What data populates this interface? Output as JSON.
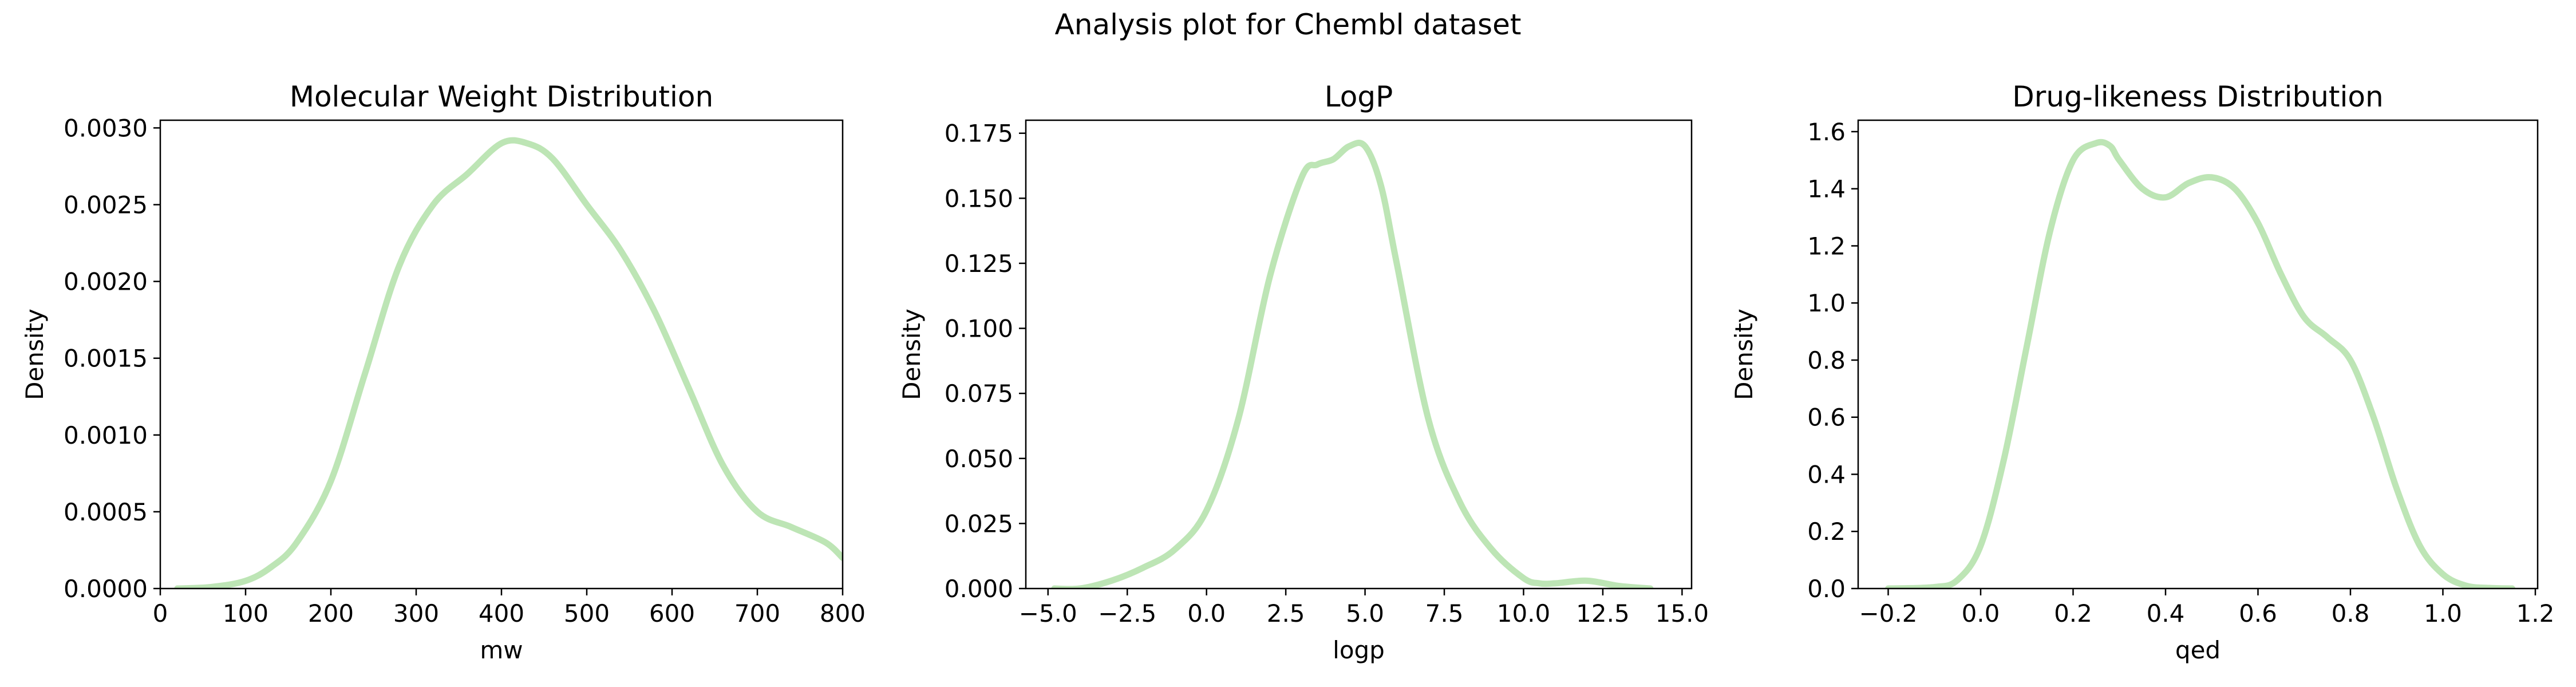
{
  "suptitle": "Analysis plot for Chembl dataset",
  "colors": {
    "curve": "#bde5b5"
  },
  "chart_data": [
    {
      "type": "line",
      "title": "Molecular Weight Distribution",
      "xlabel": "mw",
      "ylabel": "Density",
      "xlim": [
        0,
        800
      ],
      "ylim": [
        0,
        0.00305
      ],
      "xticks": [
        0,
        100,
        200,
        300,
        400,
        500,
        600,
        700,
        800
      ],
      "xtick_labels": [
        "0",
        "100",
        "200",
        "300",
        "400",
        "500",
        "600",
        "700",
        "800"
      ],
      "yticks": [
        0,
        0.0005,
        0.001,
        0.0015,
        0.002,
        0.0025,
        0.003
      ],
      "ytick_labels": [
        "0.0000",
        "0.0005",
        "0.0010",
        "0.0015",
        "0.0020",
        "0.0025",
        "0.0030"
      ],
      "grid": false,
      "series": [
        {
          "x": [
            20,
            60,
            100,
            130,
            160,
            200,
            240,
            280,
            320,
            360,
            400,
            430,
            460,
            500,
            540,
            580,
            620,
            660,
            700,
            740,
            780,
            800
          ],
          "y": [
            0.0,
            1e-05,
            5e-05,
            0.00014,
            0.0003,
            0.0007,
            0.0014,
            0.0021,
            0.0025,
            0.0027,
            0.0029,
            0.0029,
            0.0028,
            0.0025,
            0.0022,
            0.0018,
            0.0013,
            0.0008,
            0.0005,
            0.0004,
            0.0003,
            0.0002
          ]
        }
      ]
    },
    {
      "type": "line",
      "title": "LogP",
      "xlabel": "logp",
      "ylabel": "Density",
      "xlim": [
        -5.7,
        15.3
      ],
      "ylim": [
        0,
        0.18
      ],
      "xticks": [
        -5,
        -2.5,
        0,
        2.5,
        5,
        7.5,
        10,
        12.5,
        15
      ],
      "xtick_labels": [
        "−5.0",
        "−2.5",
        "0.0",
        "2.5",
        "5.0",
        "7.5",
        "10.0",
        "12.5",
        "15.0"
      ],
      "yticks": [
        0,
        0.025,
        0.05,
        0.075,
        0.1,
        0.125,
        0.15,
        0.175
      ],
      "ytick_labels": [
        "0.000",
        "0.025",
        "0.050",
        "0.075",
        "0.100",
        "0.125",
        "0.150",
        "0.175"
      ],
      "grid": false,
      "series": [
        {
          "x": [
            -4.8,
            -4,
            -3,
            -2,
            -1,
            0,
            1,
            2,
            3,
            3.5,
            4,
            4.5,
            5,
            5.5,
            6,
            7,
            8,
            9,
            10,
            10.5,
            11,
            12,
            13,
            14
          ],
          "y": [
            0.0,
            0.0,
            0.003,
            0.008,
            0.015,
            0.03,
            0.065,
            0.12,
            0.158,
            0.163,
            0.165,
            0.17,
            0.17,
            0.155,
            0.125,
            0.065,
            0.033,
            0.015,
            0.004,
            0.002,
            0.002,
            0.003,
            0.001,
            0.0
          ]
        }
      ]
    },
    {
      "type": "line",
      "title": "Drug-likeness Distribution",
      "xlabel": "qed",
      "ylabel": "Density",
      "xlim": [
        -0.265,
        1.205
      ],
      "ylim": [
        0,
        1.64
      ],
      "xticks": [
        -0.2,
        0.0,
        0.2,
        0.4,
        0.6,
        0.8,
        1.0,
        1.2
      ],
      "xtick_labels": [
        "−0.2",
        "0.0",
        "0.2",
        "0.4",
        "0.6",
        "0.8",
        "1.0",
        "1.2"
      ],
      "yticks": [
        0,
        0.2,
        0.4,
        0.6,
        0.8,
        1.0,
        1.2,
        1.4,
        1.6
      ],
      "ytick_labels": [
        "0.0",
        "0.2",
        "0.4",
        "0.6",
        "0.8",
        "1.0",
        "1.2",
        "1.4",
        "1.6"
      ],
      "grid": false,
      "series": [
        {
          "x": [
            -0.2,
            -0.1,
            -0.05,
            0.0,
            0.05,
            0.1,
            0.15,
            0.2,
            0.25,
            0.28,
            0.3,
            0.35,
            0.4,
            0.45,
            0.5,
            0.55,
            0.6,
            0.65,
            0.7,
            0.75,
            0.8,
            0.85,
            0.9,
            0.95,
            1.0,
            1.05,
            1.1,
            1.15
          ],
          "y": [
            0.0,
            0.005,
            0.03,
            0.15,
            0.45,
            0.85,
            1.25,
            1.5,
            1.56,
            1.55,
            1.5,
            1.4,
            1.37,
            1.42,
            1.44,
            1.4,
            1.28,
            1.1,
            0.95,
            0.88,
            0.8,
            0.6,
            0.35,
            0.15,
            0.05,
            0.01,
            0.002,
            0.0
          ]
        }
      ]
    }
  ]
}
